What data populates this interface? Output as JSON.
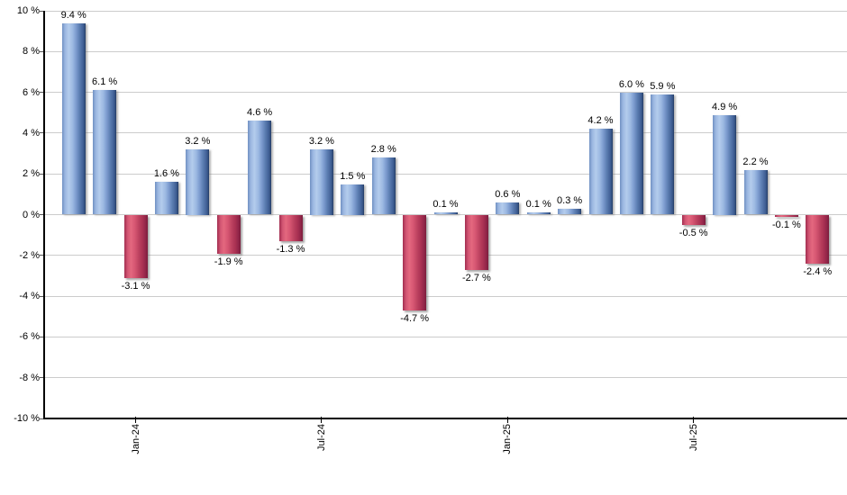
{
  "chart_data": {
    "type": "bar",
    "title": "",
    "xlabel": "",
    "ylabel": "",
    "ylim": [
      -10,
      10
    ],
    "y_tick_step": 2,
    "grid": true,
    "legend": "none",
    "bars": [
      {
        "value": 9.4,
        "label": "9.4 %"
      },
      {
        "value": 6.1,
        "label": "6.1 %"
      },
      {
        "value": -3.1,
        "label": "-3.1 %"
      },
      {
        "value": 1.6,
        "label": "1.6 %"
      },
      {
        "value": 3.2,
        "label": "3.2 %"
      },
      {
        "value": -1.9,
        "label": "-1.9 %"
      },
      {
        "value": 4.6,
        "label": "4.6 %"
      },
      {
        "value": -1.3,
        "label": "-1.3 %"
      },
      {
        "value": 3.2,
        "label": "3.2 %"
      },
      {
        "value": 1.5,
        "label": "1.5 %"
      },
      {
        "value": 2.8,
        "label": "2.8 %"
      },
      {
        "value": -4.7,
        "label": "-4.7 %"
      },
      {
        "value": 0.1,
        "label": "0.1 %"
      },
      {
        "value": -2.7,
        "label": "-2.7 %"
      },
      {
        "value": 0.6,
        "label": "0.6 %"
      },
      {
        "value": 0.1,
        "label": "0.1 %"
      },
      {
        "value": 0.3,
        "label": "0.3 %"
      },
      {
        "value": 4.2,
        "label": "4.2 %"
      },
      {
        "value": 6.0,
        "label": "6.0 %"
      },
      {
        "value": 5.9,
        "label": "5.9 %"
      },
      {
        "value": -0.5,
        "label": "-0.5 %"
      },
      {
        "value": 4.9,
        "label": "4.9 %"
      },
      {
        "value": 2.2,
        "label": "2.2 %"
      },
      {
        "value": -0.1,
        "label": "-0.1 %"
      },
      {
        "value": -2.4,
        "label": "-2.4 %"
      }
    ],
    "x_ticks": [
      {
        "bar_index": 2,
        "label": "Jan-24"
      },
      {
        "bar_index": 8,
        "label": "Jul-24"
      },
      {
        "bar_index": 14,
        "label": "Jan-25"
      },
      {
        "bar_index": 20,
        "label": "Jul-25"
      }
    ],
    "y_ticks": [
      "10 %",
      "8 %",
      "6 %",
      "4 %",
      "2 %",
      "0 %",
      "-2 %",
      "-4 %",
      "-6 %",
      "-8 %",
      "-10 %"
    ],
    "colors": {
      "positive_bar_light": "#b4ccec",
      "positive_bar_mid": "#7b9ace",
      "positive_bar_dark": "#213760",
      "negative_bar_light": "#e4687f",
      "negative_bar_mid": "#bd4260",
      "negative_bar_dark": "#7c1d3c",
      "gridline": "#cccccc",
      "axis": "#000000",
      "label_text": "#000000",
      "background": "#ffffff"
    }
  }
}
